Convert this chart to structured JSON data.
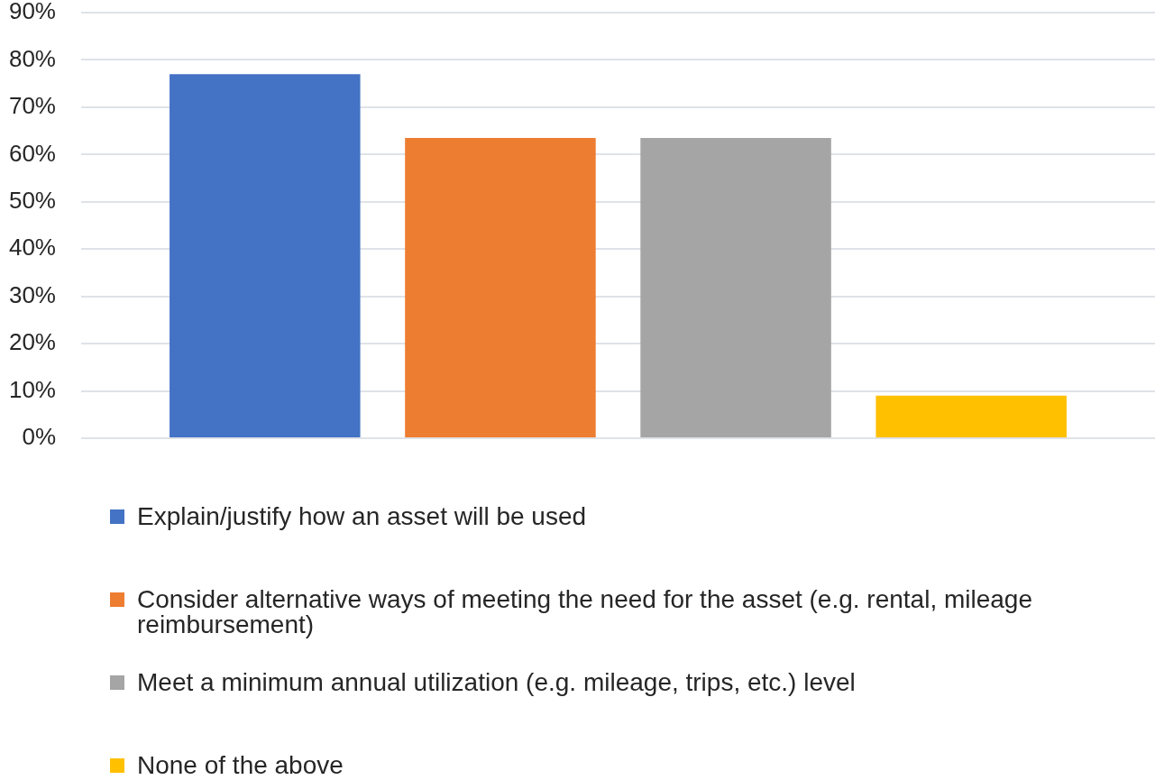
{
  "chart_data": {
    "type": "bar",
    "categories": [
      null
    ],
    "series": [
      {
        "name": "Explain/justify how an asset will be used",
        "color": "#4472c4",
        "values": [
          77
        ]
      },
      {
        "name": "Consider alternative ways of meeting the need for the asset (e.g. rental, mileage reimbursement)",
        "color": "#ed7d31",
        "values": [
          63.5
        ]
      },
      {
        "name": "Meet a minimum annual utilization (e.g. mileage, trips, etc.) level",
        "color": "#a5a5a5",
        "values": [
          63.5
        ]
      },
      {
        "name": "None of the above",
        "color": "#ffc000",
        "values": [
          9
        ]
      }
    ],
    "ylim": [
      0,
      90
    ],
    "yticks": [
      {
        "value": 0,
        "label": "0%"
      },
      {
        "value": 10,
        "label": "10%"
      },
      {
        "value": 20,
        "label": "20%"
      },
      {
        "value": 30,
        "label": "30%"
      },
      {
        "value": 40,
        "label": "40%"
      },
      {
        "value": 50,
        "label": "50%"
      },
      {
        "value": 60,
        "label": "60%"
      },
      {
        "value": 70,
        "label": "70%"
      },
      {
        "value": 80,
        "label": "80%"
      },
      {
        "value": 90,
        "label": "90%"
      }
    ],
    "grid": "y",
    "legend": "bottom"
  }
}
